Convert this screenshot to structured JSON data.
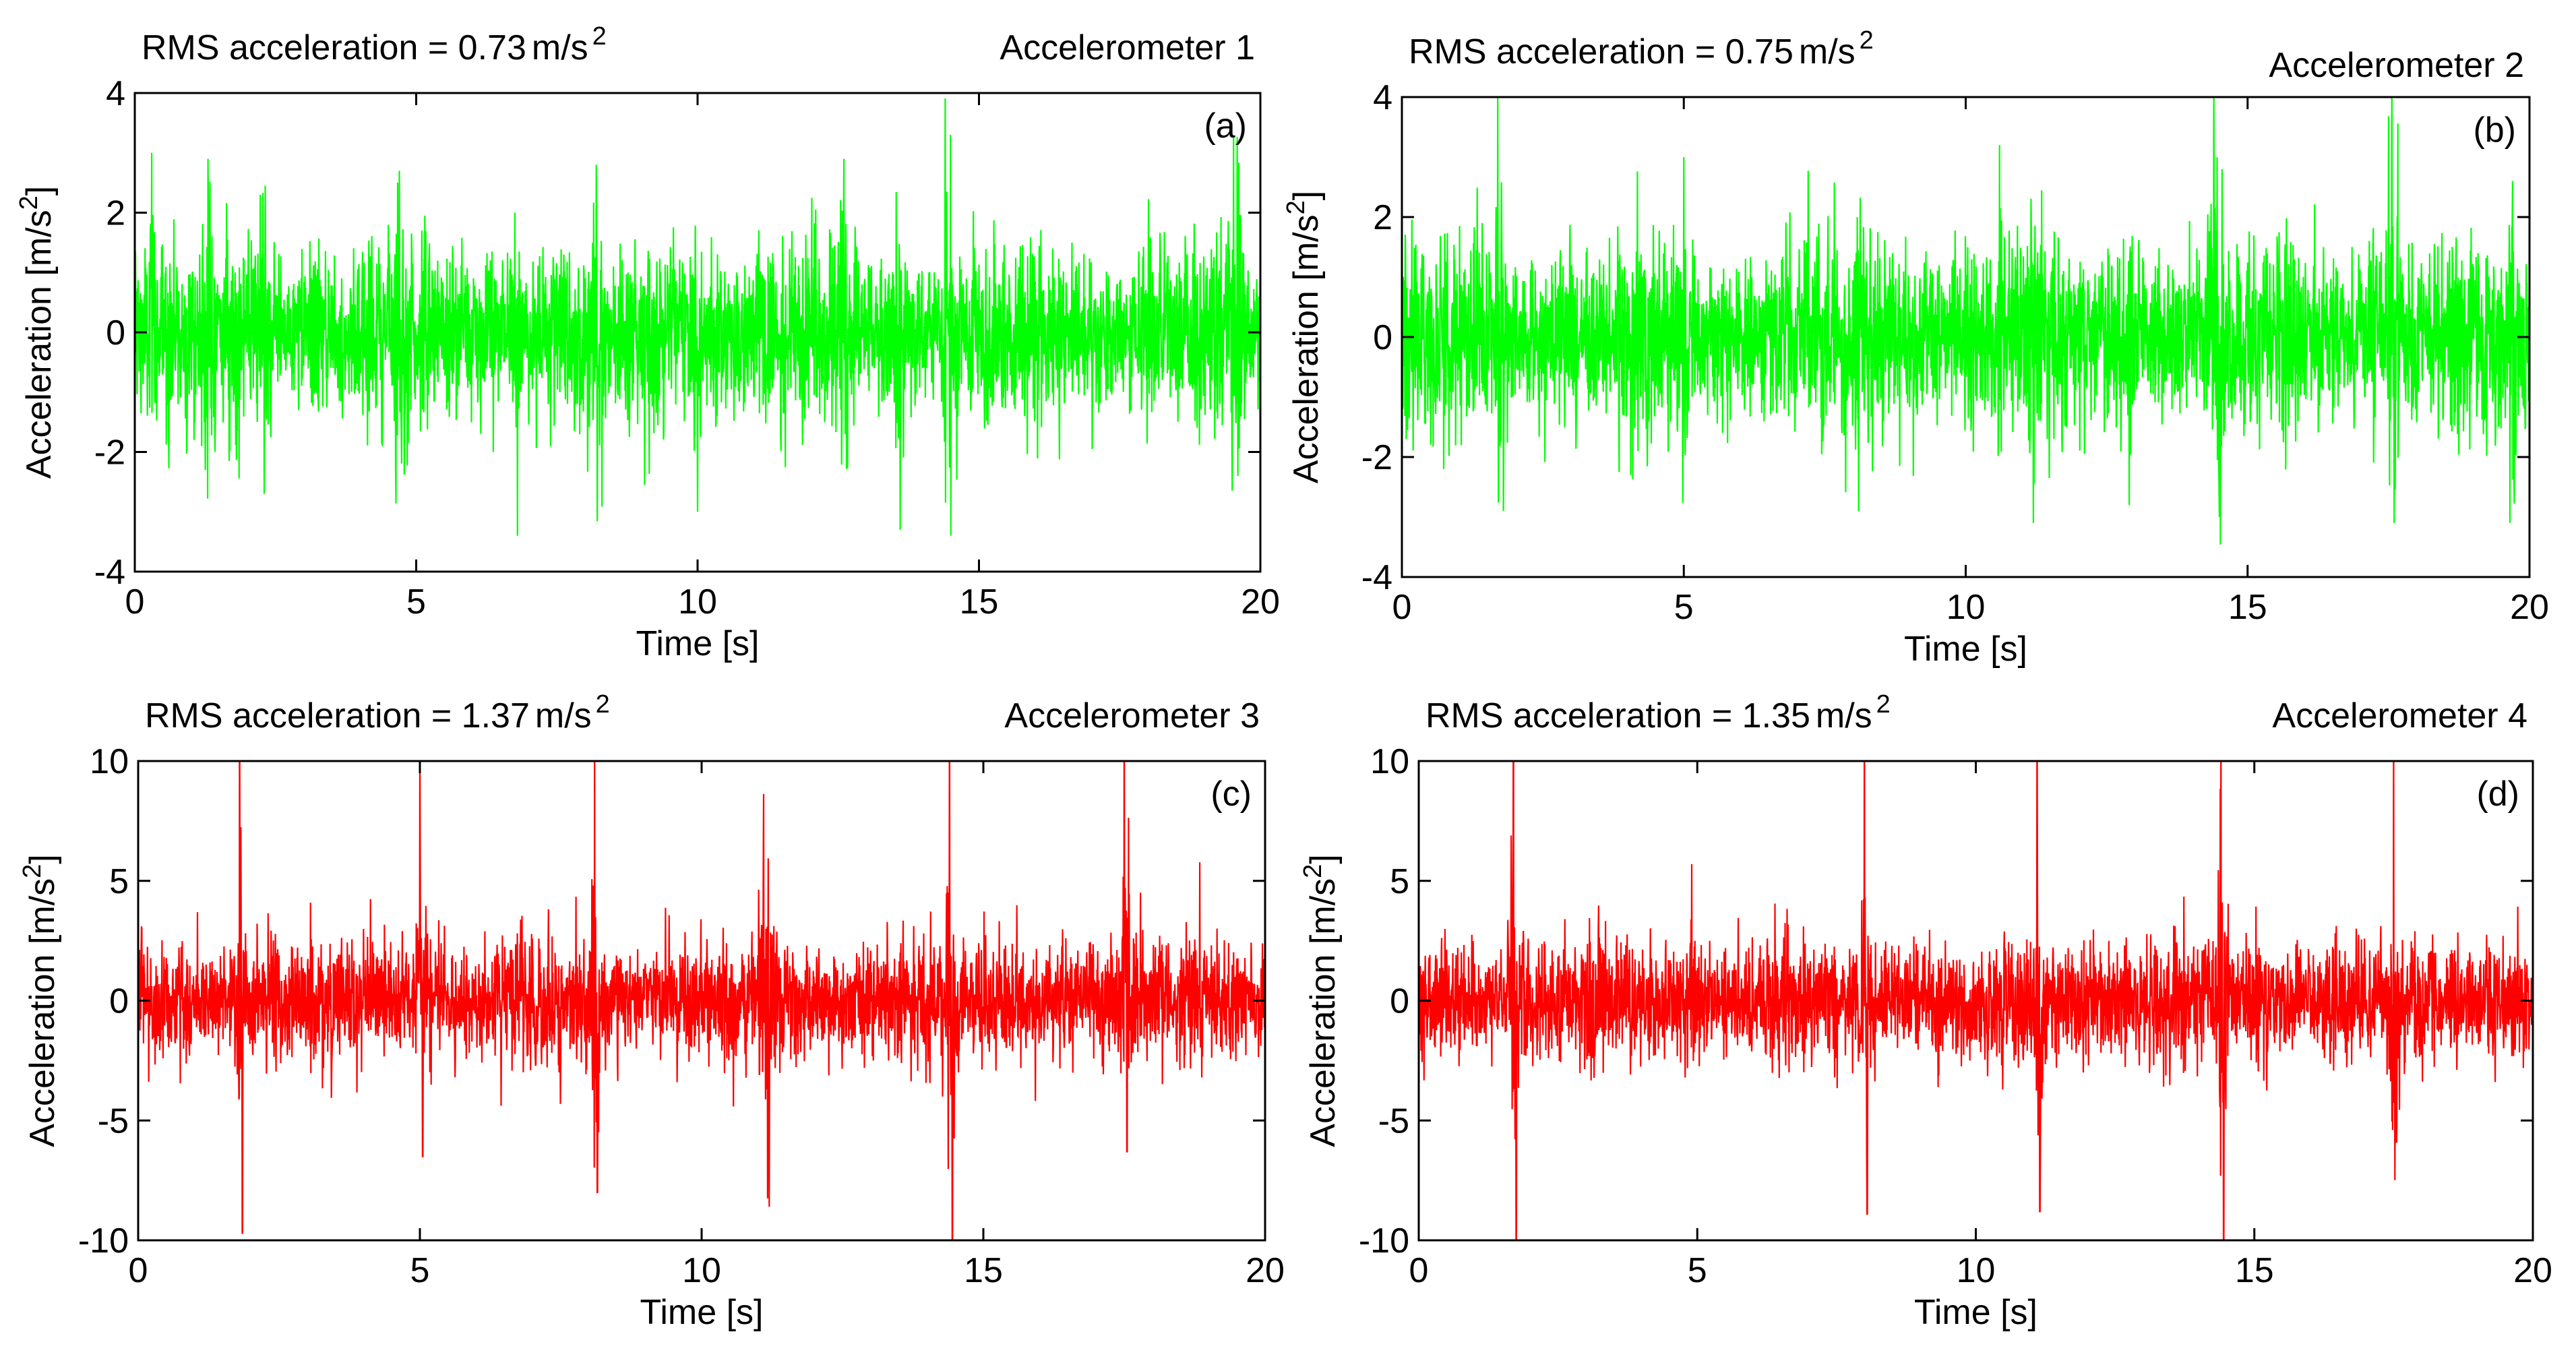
{
  "chart_data": [
    {
      "type": "line",
      "panel": "(a)",
      "sensor": "Accelerometer 1",
      "rms_prefix": "RMS acceleration = ",
      "rms_value": "0.73",
      "rms_unit": "m/s",
      "rms_unit_exp": "2",
      "xlabel": "Time [s]",
      "ylabel": "Acceleration [m/s",
      "ylabel_exp": "2",
      "ylabel_close": "]",
      "xlim": [
        0,
        20
      ],
      "ylim": [
        -4,
        4
      ],
      "xticks": [
        0,
        5,
        10,
        15,
        20
      ],
      "yticks": [
        -4,
        -2,
        0,
        2,
        4
      ],
      "color": "#00ff00",
      "rms": 0.73,
      "noise_std": 0.72,
      "spikes": [
        {
          "t": 0.3,
          "v": 3.0
        },
        {
          "t": 1.3,
          "v": 2.9
        },
        {
          "t": 2.3,
          "v": -2.7
        },
        {
          "t": 4.7,
          "v": 2.7
        },
        {
          "t": 6.8,
          "v": -3.4
        },
        {
          "t": 8.2,
          "v": 2.8
        },
        {
          "t": 10.0,
          "v": -3.0
        },
        {
          "t": 12.6,
          "v": 2.9
        },
        {
          "t": 13.6,
          "v": -3.3
        },
        {
          "t": 14.4,
          "v": 3.4
        },
        {
          "t": 14.5,
          "v": -3.4
        },
        {
          "t": 19.6,
          "v": -2.4
        }
      ]
    },
    {
      "type": "line",
      "panel": "(b)",
      "sensor": "Accelerometer 2",
      "rms_prefix": "RMS acceleration = ",
      "rms_value": "0.75",
      "rms_unit": "m/s",
      "rms_unit_exp": "2",
      "xlabel": "Time [s]",
      "ylabel": "Acceleration [m/s",
      "ylabel_exp": "2",
      "ylabel_close": "]",
      "xlim": [
        0,
        20
      ],
      "ylim": [
        -4,
        4
      ],
      "xticks": [
        0,
        5,
        10,
        15,
        20
      ],
      "yticks": [
        -4,
        -2,
        0,
        2,
        4
      ],
      "color": "#00ff00",
      "rms": 0.75,
      "noise_std": 0.74,
      "spikes": [
        {
          "t": 1.7,
          "v": 3.7
        },
        {
          "t": 1.8,
          "v": -2.9
        },
        {
          "t": 5.0,
          "v": 3.0
        },
        {
          "t": 8.1,
          "v": -2.9
        },
        {
          "t": 10.6,
          "v": 3.2
        },
        {
          "t": 11.2,
          "v": -3.1
        },
        {
          "t": 12.9,
          "v": -2.8
        },
        {
          "t": 14.4,
          "v": 3.7
        },
        {
          "t": 14.5,
          "v": -3.0
        },
        {
          "t": 17.5,
          "v": 3.2
        },
        {
          "t": 17.6,
          "v": -3.1
        },
        {
          "t": 19.7,
          "v": 2.6
        }
      ]
    },
    {
      "type": "line",
      "panel": "(c)",
      "sensor": "Accelerometer 3",
      "rms_prefix": "RMS acceleration = ",
      "rms_value": "1.37",
      "rms_unit": "m/s",
      "rms_unit_exp": "2",
      "xlabel": "Time [s]",
      "ylabel": "Acceleration [m/s",
      "ylabel_exp": "2",
      "ylabel_close": "]",
      "xlim": [
        0,
        20
      ],
      "ylim": [
        -10,
        10
      ],
      "xticks": [
        0,
        5,
        10,
        15,
        20
      ],
      "yticks": [
        -10,
        -5,
        0,
        5,
        10
      ],
      "color": "#ff0000",
      "rms": 1.37,
      "noise_std": 1.25,
      "spikes": [
        {
          "t": 1.8,
          "v": 10.0
        },
        {
          "t": 1.85,
          "v": -9.7
        },
        {
          "t": 5.0,
          "v": 7.0
        },
        {
          "t": 5.05,
          "v": -6.5
        },
        {
          "t": 8.1,
          "v": 7.7
        },
        {
          "t": 8.15,
          "v": -8.0
        },
        {
          "t": 11.1,
          "v": 7.5
        },
        {
          "t": 11.2,
          "v": -8.6
        },
        {
          "t": 14.4,
          "v": 9.8
        },
        {
          "t": 14.45,
          "v": -10.0
        },
        {
          "t": 17.5,
          "v": 9.3
        },
        {
          "t": 17.55,
          "v": -6.3
        }
      ]
    },
    {
      "type": "line",
      "panel": "(d)",
      "sensor": "Accelerometer 4",
      "rms_prefix": "RMS acceleration = ",
      "rms_value": "1.35",
      "rms_unit": "m/s",
      "rms_unit_exp": "2",
      "xlabel": "Time [s]",
      "ylabel": "Acceleration [m/s",
      "ylabel_exp": "2",
      "ylabel_close": "]",
      "xlim": [
        0,
        20
      ],
      "ylim": [
        -10,
        10
      ],
      "xticks": [
        0,
        5,
        10,
        15,
        20
      ],
      "yticks": [
        -10,
        -5,
        0,
        5,
        10
      ],
      "color": "#ff0000",
      "rms": 1.35,
      "noise_std": 1.23,
      "spikes": [
        {
          "t": 1.7,
          "v": 10.0
        },
        {
          "t": 1.75,
          "v": -10.0
        },
        {
          "t": 4.9,
          "v": 5.7
        },
        {
          "t": 8.0,
          "v": 8.9
        },
        {
          "t": 8.05,
          "v": -8.9
        },
        {
          "t": 11.1,
          "v": 8.7
        },
        {
          "t": 11.15,
          "v": -8.8
        },
        {
          "t": 14.4,
          "v": 9.5
        },
        {
          "t": 14.45,
          "v": -10.0
        },
        {
          "t": 17.5,
          "v": 7.8
        },
        {
          "t": 17.55,
          "v": -5.9
        }
      ]
    }
  ]
}
